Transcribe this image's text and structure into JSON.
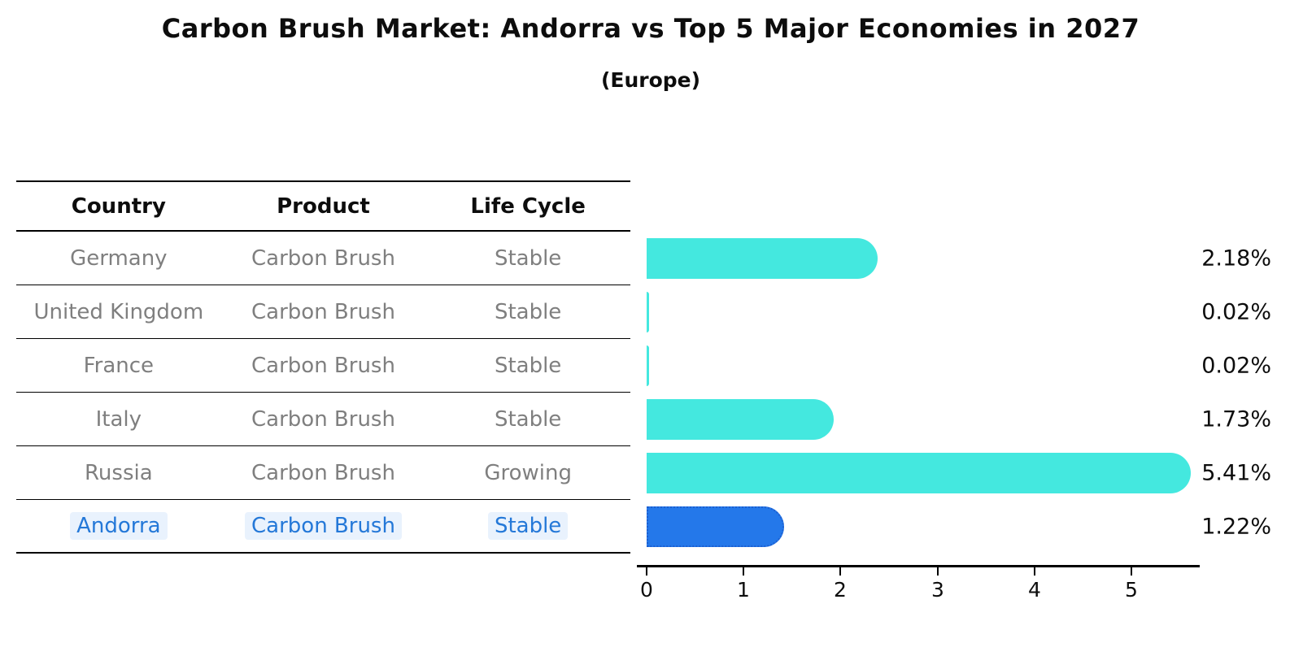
{
  "header": {
    "title": "Carbon Brush Market: Andorra vs Top 5 Major Economies in 2027",
    "subtitle": "(Europe)"
  },
  "table": {
    "columns": [
      "Country",
      "Product",
      "Life Cycle"
    ],
    "highlight_text_color": "#2478d8",
    "rows": [
      {
        "country": "Germany",
        "product": "Carbon Brush",
        "life_cycle": "Stable",
        "highlight": false
      },
      {
        "country": "United Kingdom",
        "product": "Carbon Brush",
        "life_cycle": "Stable",
        "highlight": false
      },
      {
        "country": "France",
        "product": "Carbon Brush",
        "life_cycle": "Stable",
        "highlight": false
      },
      {
        "country": "Italy",
        "product": "Carbon Brush",
        "life_cycle": "Stable",
        "highlight": false
      },
      {
        "country": "Russia",
        "product": "Carbon Brush",
        "life_cycle": "Growing",
        "highlight": false
      },
      {
        "country": "Andorra",
        "product": "Carbon Brush",
        "life_cycle": "Stable",
        "highlight": true
      }
    ]
  },
  "chart_data": {
    "type": "bar",
    "orientation": "horizontal",
    "title": "Carbon Brush Market: Andorra vs Top 5 Major Economies in 2027",
    "subtitle": "(Europe)",
    "categories": [
      "Germany",
      "United Kingdom",
      "France",
      "Italy",
      "Russia",
      "Andorra"
    ],
    "values": [
      2.18,
      0.02,
      0.02,
      1.73,
      5.41,
      1.22
    ],
    "value_labels": [
      "2.18%",
      "0.02%",
      "0.02%",
      "1.73%",
      "5.41%",
      "1.22%"
    ],
    "unit": "%",
    "x_ticks": [
      "0",
      "1",
      "2",
      "3",
      "4",
      "5"
    ],
    "xlim": [
      0,
      5.8
    ],
    "grid": false,
    "legend": false,
    "bar_color": "#44e8df",
    "highlight_index": 5,
    "highlight_color": "#2478ea",
    "highlight_border_color": "#1d5fd0"
  }
}
